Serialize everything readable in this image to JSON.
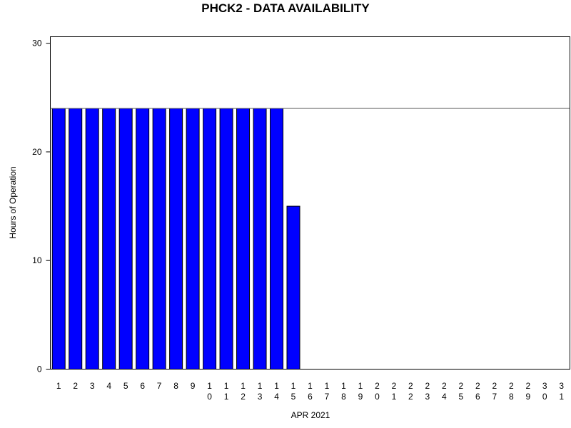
{
  "chart_data": {
    "type": "bar",
    "title": "PHCK2 - DATA AVAILABILITY",
    "x_label": "APR 2021",
    "y_label": "Hours of Operation",
    "categories": [
      "1",
      "2",
      "3",
      "4",
      "5",
      "6",
      "7",
      "8",
      "9",
      "10",
      "11",
      "12",
      "13",
      "14",
      "15",
      "16",
      "17",
      "18",
      "19",
      "20",
      "21",
      "22",
      "23",
      "24",
      "25",
      "26",
      "27",
      "28",
      "29",
      "30",
      "31"
    ],
    "values": [
      24,
      24,
      24,
      24,
      24,
      24,
      24,
      24,
      24,
      24,
      24,
      24,
      24,
      24,
      15,
      0,
      0,
      0,
      0,
      0,
      0,
      0,
      0,
      0,
      0,
      0,
      0,
      0,
      0,
      0,
      0
    ],
    "color": "#0000ff",
    "reference_line": 24,
    "ylim": [
      0,
      30.6
    ],
    "yticks": [
      0,
      10,
      20,
      30
    ]
  }
}
